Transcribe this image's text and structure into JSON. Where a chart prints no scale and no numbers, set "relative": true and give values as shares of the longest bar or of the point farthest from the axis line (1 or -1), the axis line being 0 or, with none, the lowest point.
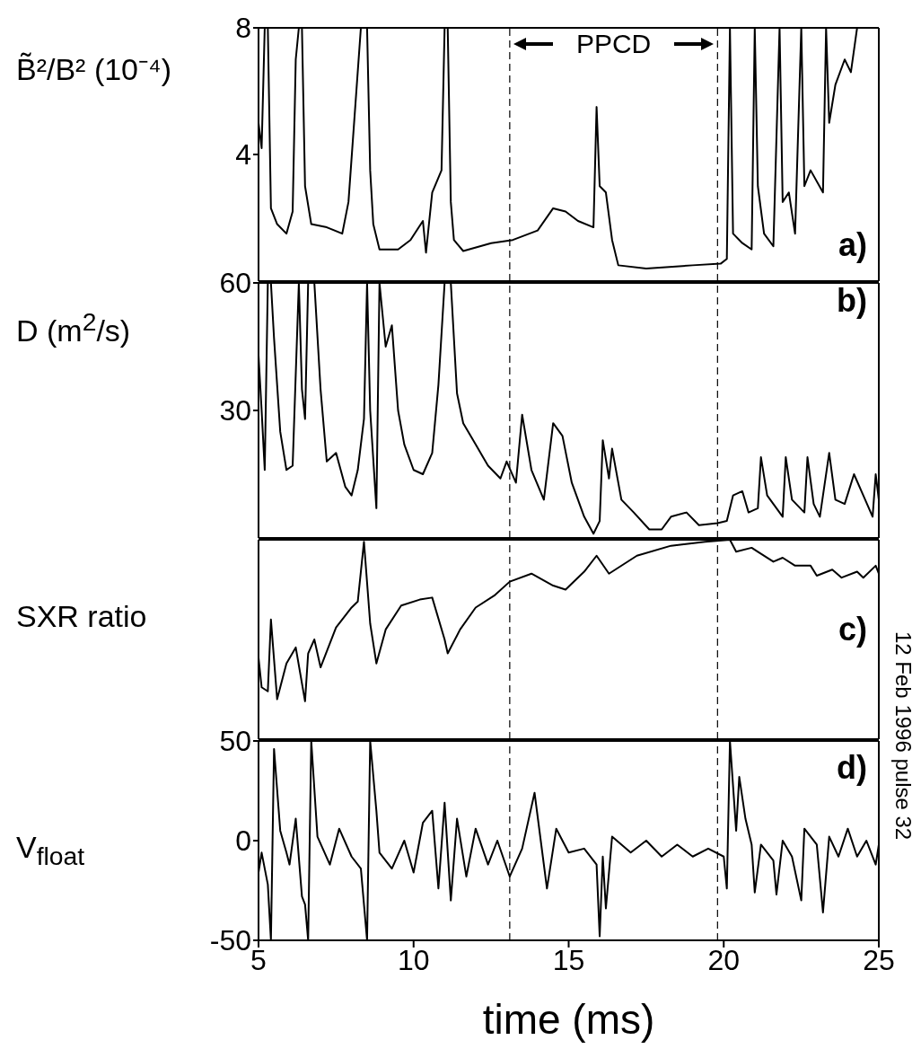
{
  "chart_data": [
    {
      "type": "line",
      "ylabel": "B̃²/B² (10⁻⁴)",
      "xlim": [
        5,
        25
      ],
      "xticks": [
        5,
        10,
        15,
        20,
        25
      ],
      "ylim": [
        0,
        8
      ],
      "yticks": [
        4,
        8
      ],
      "tick_labels": "y",
      "x": [
        5.0,
        5.1,
        5.2,
        5.3,
        5.4,
        5.6,
        5.9,
        6.1,
        6.2,
        6.3,
        6.4,
        6.5,
        6.7,
        7.2,
        7.7,
        7.9,
        8.3,
        8.5,
        8.6,
        8.7,
        8.9,
        9.5,
        9.9,
        10.3,
        10.4,
        10.6,
        10.9,
        11.0,
        11.1,
        11.2,
        11.3,
        11.6,
        12.5,
        13.2,
        14.0,
        14.5,
        14.9,
        15.3,
        15.8,
        15.9,
        16.0,
        16.2,
        16.4,
        16.6,
        17.5,
        19.0,
        19.9,
        20.1,
        20.2,
        20.3,
        20.6,
        20.9,
        21.0,
        21.1,
        21.3,
        21.6,
        21.8,
        21.9,
        22.1,
        22.3,
        22.5,
        22.6,
        22.8,
        23.2,
        23.3,
        23.4,
        23.6,
        23.9,
        24.1,
        24.3
      ],
      "series": [
        {
          "color": "#000000",
          "values": [
            5.0,
            4.2,
            8,
            8,
            2.3,
            1.8,
            1.5,
            2.2,
            7.0,
            8,
            8,
            3.0,
            1.8,
            1.7,
            1.5,
            2.5,
            8,
            8,
            3.5,
            1.8,
            1.0,
            1.0,
            1.3,
            1.9,
            0.9,
            2.8,
            3.5,
            8,
            8,
            2.5,
            1.3,
            0.95,
            1.2,
            1.3,
            1.6,
            2.3,
            2.2,
            1.9,
            1.7,
            5.5,
            3.0,
            2.8,
            1.3,
            0.5,
            0.4,
            0.5,
            0.55,
            0.7,
            8,
            1.5,
            1.2,
            1.0,
            8,
            3.0,
            1.5,
            1.1,
            8,
            2.5,
            2.8,
            1.5,
            8,
            3.0,
            3.5,
            2.8,
            8,
            5.0,
            6.2,
            7.0,
            6.6,
            8
          ]
        }
      ],
      "ref_lines": [
        {
          "axis": "x",
          "value": 13.1,
          "line_style": "dashed"
        },
        {
          "axis": "x",
          "value": 19.8,
          "line_style": "dashed"
        }
      ],
      "annotations": [
        "a)",
        "PPCD"
      ]
    },
    {
      "type": "line",
      "ylabel": "D (m$^{2}$/s)",
      "xlim": [
        5,
        25
      ],
      "xticks": [
        5,
        10,
        15,
        20,
        25
      ],
      "ylim": [
        0,
        60
      ],
      "yticks": [
        30,
        60
      ],
      "tick_labels": "y",
      "x": [
        5.0,
        5.1,
        5.2,
        5.3,
        5.4,
        5.5,
        5.7,
        5.9,
        6.1,
        6.3,
        6.4,
        6.5,
        6.6,
        6.8,
        7.0,
        7.2,
        7.5,
        7.8,
        8.0,
        8.2,
        8.4,
        8.5,
        8.6,
        8.8,
        8.9,
        9.1,
        9.3,
        9.5,
        9.7,
        10.0,
        10.3,
        10.6,
        10.8,
        11.0,
        11.2,
        11.4,
        11.6,
        12.0,
        12.4,
        12.8,
        13.0,
        13.3,
        13.5,
        13.8,
        14.2,
        14.5,
        14.8,
        15.1,
        15.5,
        15.8,
        16.0,
        16.1,
        16.3,
        16.4,
        16.7,
        17.1,
        17.6,
        18.0,
        18.3,
        18.8,
        19.2,
        19.8,
        20.1,
        20.3,
        20.6,
        20.8,
        21.1,
        21.2,
        21.4,
        21.6,
        21.9,
        22.0,
        22.2,
        22.6,
        22.7,
        22.9,
        23.1,
        23.4,
        23.6,
        23.9,
        24.2,
        24.5,
        24.8,
        24.9,
        25.0
      ],
      "series": [
        {
          "color": "#000000",
          "values": [
            43,
            30,
            16,
            60,
            60,
            47,
            25,
            16,
            17,
            60,
            35,
            28,
            60,
            60,
            35,
            18,
            20,
            12,
            10,
            16,
            28,
            60,
            30,
            7,
            60,
            45,
            50,
            30,
            22,
            16,
            15,
            20,
            36,
            60,
            60,
            34,
            27,
            22,
            17,
            14,
            18,
            13,
            29,
            16,
            9,
            27,
            24,
            13,
            5,
            1,
            4,
            23,
            14,
            21,
            9,
            6,
            2,
            2,
            5,
            6,
            3,
            3.5,
            4,
            10,
            11,
            6,
            7,
            19,
            10,
            8,
            5,
            19,
            9,
            6,
            19,
            8,
            5,
            20,
            9,
            8,
            15,
            10,
            5,
            15,
            9
          ]
        }
      ],
      "ref_lines": [
        {
          "axis": "x",
          "value": 13.1,
          "line_style": "dashed"
        },
        {
          "axis": "x",
          "value": 19.8,
          "line_style": "dashed"
        }
      ],
      "annotations": [
        "b)"
      ]
    },
    {
      "type": "line",
      "ylabel": "SXR ratio",
      "xlim": [
        5,
        25
      ],
      "xticks": [
        5,
        10,
        15,
        20,
        25
      ],
      "relative": true,
      "tick_labels": false,
      "x": [
        5.0,
        5.1,
        5.3,
        5.4,
        5.6,
        5.9,
        6.2,
        6.5,
        6.6,
        6.8,
        7.0,
        7.5,
        8.0,
        8.2,
        8.4,
        8.6,
        8.8,
        9.1,
        9.6,
        10.2,
        10.6,
        11.0,
        11.1,
        11.5,
        12.0,
        12.6,
        13.1,
        13.8,
        14.5,
        14.9,
        15.5,
        15.9,
        16.3,
        17.2,
        18.3,
        19.4,
        20.2,
        20.4,
        20.9,
        21.1,
        21.6,
        21.9,
        22.3,
        22.8,
        23.0,
        23.5,
        23.8,
        24.3,
        24.5,
        24.9,
        25.0
      ],
      "series": [
        {
          "color": "#000000",
          "values": [
            0.41,
            0.26,
            0.24,
            0.6,
            0.2,
            0.38,
            0.46,
            0.19,
            0.43,
            0.5,
            0.36,
            0.56,
            0.66,
            0.69,
            0.99,
            0.58,
            0.38,
            0.55,
            0.67,
            0.7,
            0.71,
            0.5,
            0.43,
            0.55,
            0.66,
            0.72,
            0.79,
            0.83,
            0.77,
            0.75,
            0.84,
            0.92,
            0.83,
            0.92,
            0.97,
            0.99,
            1,
            0.94,
            0.96,
            0.94,
            0.89,
            0.91,
            0.87,
            0.87,
            0.82,
            0.85,
            0.81,
            0.84,
            0.81,
            0.87,
            0.83
          ]
        }
      ],
      "ref_lines": [
        {
          "axis": "x",
          "value": 13.1,
          "line_style": "dashed"
        },
        {
          "axis": "x",
          "value": 19.8,
          "line_style": "dashed"
        }
      ],
      "annotations": [
        "c)"
      ]
    },
    {
      "type": "line",
      "ylabel": "V$_{float}$",
      "xlabel": "time (ms)",
      "xlim": [
        5,
        25
      ],
      "xticks": [
        5,
        10,
        15,
        20,
        25
      ],
      "ylim": [
        -50,
        50
      ],
      "yticks": [
        -50,
        0,
        50
      ],
      "x": [
        5.0,
        5.1,
        5.3,
        5.4,
        5.5,
        5.7,
        5.9,
        6.0,
        6.2,
        6.4,
        6.5,
        6.6,
        6.7,
        6.9,
        7.3,
        7.6,
        8.0,
        8.3,
        8.5,
        8.6,
        8.8,
        8.9,
        9.3,
        9.7,
        10.0,
        10.3,
        10.6,
        10.8,
        11.0,
        11.2,
        11.4,
        11.7,
        12.0,
        12.4,
        12.7,
        13.1,
        13.5,
        13.9,
        14.1,
        14.3,
        14.6,
        15.0,
        15.5,
        15.9,
        16.0,
        16.1,
        16.2,
        16.4,
        17.0,
        17.5,
        18.0,
        18.5,
        19.0,
        19.5,
        20.0,
        20.1,
        20.2,
        20.4,
        20.5,
        20.7,
        20.9,
        21.0,
        21.2,
        21.6,
        21.7,
        21.9,
        22.2,
        22.5,
        22.6,
        23.0,
        23.2,
        23.4,
        23.7,
        24.0,
        24.3,
        24.6,
        24.9,
        25.0
      ],
      "series": [
        {
          "color": "#000000",
          "values": [
            -16,
            -6,
            -22,
            -50,
            46,
            5,
            -6,
            -12,
            11,
            -28,
            -32,
            -50,
            50,
            2,
            -12,
            6,
            -8,
            -14,
            -50,
            50,
            15,
            -6,
            -14,
            0,
            -16,
            9,
            15,
            -24,
            19,
            -30,
            11,
            -18,
            6,
            -12,
            0,
            -18,
            -4,
            24,
            0,
            -24,
            6,
            -6,
            -4,
            -12,
            -48,
            -8,
            -34,
            2,
            -6,
            0,
            -8,
            -2,
            -8,
            -4,
            -8,
            -24,
            50,
            5,
            32,
            11,
            -2,
            -26,
            -2,
            -10,
            -27,
            0,
            -8,
            -30,
            6,
            -2,
            -36,
            2,
            -8,
            6,
            -8,
            0,
            -12,
            -2
          ]
        }
      ],
      "ref_lines": [
        {
          "axis": "x",
          "value": 13.1,
          "line_style": "dashed"
        },
        {
          "axis": "x",
          "value": 19.8,
          "line_style": "dashed"
        }
      ],
      "annotations": [
        "d)",
        "12 Feb 1996 pulse 32"
      ]
    }
  ]
}
